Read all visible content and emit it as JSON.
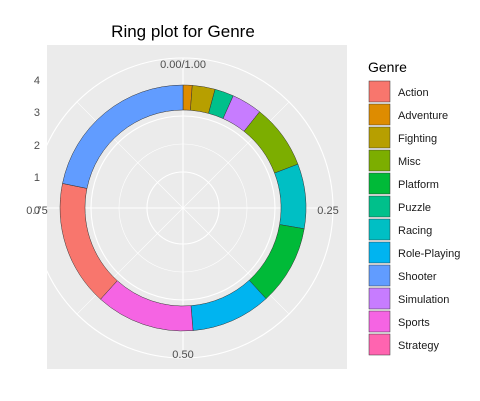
{
  "chart_data": {
    "type": "pie",
    "style": "ring",
    "title": "Ring plot for Genre",
    "radial_ticks": [
      "0",
      "1",
      "2",
      "3",
      "4"
    ],
    "angle_ticks": [
      "0.00/1.00",
      "0.25",
      "0.50",
      "0.75"
    ],
    "legend": {
      "title": "Genre",
      "position": "right"
    },
    "grid": true,
    "categories": [
      "Action",
      "Adventure",
      "Fighting",
      "Misc",
      "Platform",
      "Puzzle",
      "Racing",
      "Role-Playing",
      "Shooter",
      "Simulation",
      "Sports",
      "Strategy"
    ],
    "slice_order": [
      "Adventure",
      "Fighting",
      "Puzzle",
      "Simulation",
      "Misc",
      "Racing",
      "Platform",
      "Role-Playing",
      "Sports",
      "Action",
      "Shooter"
    ],
    "values": {
      "Adventure": 0.012,
      "Fighting": 0.03,
      "Puzzle": 0.025,
      "Simulation": 0.04,
      "Misc": 0.085,
      "Racing": 0.085,
      "Platform": 0.105,
      "Role-Playing": 0.105,
      "Sports": 0.13,
      "Action": 0.165,
      "Shooter": 0.218,
      "Strategy": 0.0
    },
    "colors": {
      "Action": "#F8766D",
      "Adventure": "#DE8C00",
      "Fighting": "#B79F00",
      "Misc": "#7CAE00",
      "Platform": "#00BA38",
      "Puzzle": "#00C08B",
      "Racing": "#00BFC4",
      "Role-Playing": "#00B4F0",
      "Shooter": "#619CFF",
      "Simulation": "#C77CFF",
      "Sports": "#F564E3",
      "Strategy": "#FF64B0"
    }
  }
}
